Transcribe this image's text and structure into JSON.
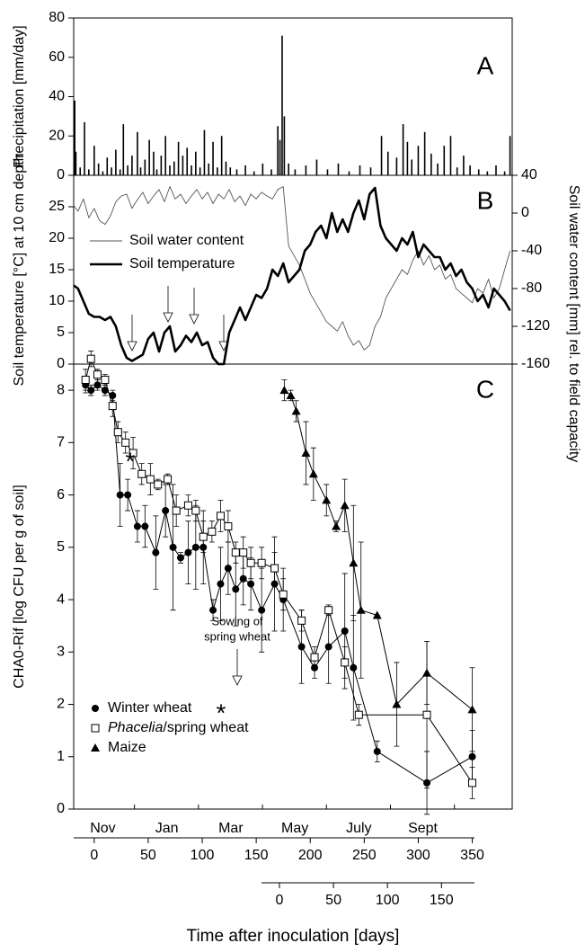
{
  "chart_data": [
    {
      "type": "bar",
      "label": "A",
      "ylabel": "Precipitation [mm/day]",
      "xlim": [
        -19,
        387
      ],
      "ylim": [
        0,
        80
      ],
      "yticks": [
        0,
        20,
        40,
        60,
        80
      ],
      "color": "#000000",
      "x": [
        -18,
        -17,
        -13,
        -9,
        -5,
        0,
        4,
        8,
        12,
        16,
        20,
        24,
        27,
        31,
        35,
        40,
        43,
        47,
        51,
        55,
        58,
        62,
        66,
        70,
        74,
        78,
        82,
        86,
        90,
        94,
        98,
        102,
        106,
        110,
        114,
        118,
        122,
        126,
        132,
        140,
        148,
        156,
        164,
        170,
        172,
        174,
        176,
        180,
        186,
        196,
        206,
        216,
        226,
        236,
        246,
        256,
        266,
        272,
        280,
        286,
        290,
        294,
        300,
        306,
        312,
        318,
        324,
        330,
        336,
        342,
        348,
        356,
        364,
        372,
        380,
        385
      ],
      "values": [
        38,
        12,
        4,
        27,
        3,
        15,
        6,
        2,
        9,
        4,
        13,
        3,
        26,
        5,
        10,
        22,
        4,
        8,
        18,
        12,
        3,
        10,
        20,
        5,
        7,
        17,
        10,
        14,
        5,
        12,
        4,
        23,
        6,
        17,
        4,
        20,
        7,
        4,
        3,
        5,
        2,
        6,
        3,
        25,
        18,
        71,
        30,
        6,
        3,
        5,
        8,
        3,
        6,
        2,
        5,
        4,
        20,
        12,
        9,
        26,
        17,
        8,
        15,
        22,
        11,
        6,
        15,
        20,
        4,
        10,
        5,
        3,
        2,
        5,
        2,
        20
      ]
    },
    {
      "type": "line",
      "label": "B",
      "ylabel": "Soil temperature [°C] at 10 cm depth",
      "y2label": "Soil water content [mm] rel. to field capacity",
      "xlim": [
        -19,
        387
      ],
      "ylim": [
        0,
        30
      ],
      "yticks": [
        0,
        5,
        10,
        15,
        20,
        25
      ],
      "y2lim": [
        -160,
        40
      ],
      "y2ticks": [
        -160,
        -120,
        -80,
        -40,
        0,
        40
      ],
      "legend": "center left",
      "series": [
        {
          "name": "Soil water content",
          "color": "#555555",
          "linewidth": 0.9,
          "axis": "y2",
          "x": [
            -19,
            -15,
            -10,
            -5,
            0,
            5,
            10,
            15,
            20,
            25,
            30,
            35,
            40,
            45,
            50,
            55,
            60,
            65,
            70,
            75,
            80,
            85,
            90,
            95,
            100,
            105,
            110,
            115,
            120,
            125,
            130,
            135,
            140,
            145,
            150,
            155,
            160,
            165,
            170,
            175,
            180,
            185,
            190,
            195,
            200,
            205,
            210,
            215,
            220,
            225,
            230,
            235,
            240,
            245,
            250,
            255,
            260,
            265,
            270,
            275,
            280,
            285,
            290,
            295,
            300,
            305,
            310,
            315,
            320,
            325,
            330,
            335,
            340,
            345,
            350,
            355,
            360,
            365,
            370,
            375,
            380,
            385
          ],
          "values": [
            8,
            2,
            15,
            -5,
            5,
            -8,
            -12,
            -3,
            12,
            18,
            20,
            5,
            14,
            22,
            10,
            18,
            25,
            12,
            28,
            15,
            20,
            10,
            18,
            25,
            15,
            22,
            10,
            20,
            15,
            25,
            12,
            18,
            8,
            20,
            15,
            22,
            18,
            15,
            25,
            28,
            -35,
            -45,
            -55,
            -70,
            -85,
            -95,
            -105,
            -115,
            -120,
            -125,
            -115,
            -130,
            -140,
            -135,
            -145,
            -140,
            -120,
            -110,
            -90,
            -80,
            -70,
            -60,
            -65,
            -50,
            -40,
            -55,
            -45,
            -60,
            -55,
            -70,
            -65,
            -80,
            -85,
            -90,
            -95,
            -80,
            -85,
            -70,
            -90,
            -80,
            -60,
            -40
          ]
        },
        {
          "name": "Soil temperature",
          "color": "#000000",
          "linewidth": 2.6,
          "x": [
            -19,
            -15,
            -10,
            -5,
            0,
            5,
            10,
            15,
            20,
            25,
            30,
            35,
            40,
            45,
            50,
            55,
            60,
            65,
            70,
            75,
            80,
            85,
            90,
            95,
            100,
            105,
            110,
            115,
            120,
            125,
            130,
            135,
            140,
            145,
            150,
            155,
            160,
            165,
            170,
            175,
            180,
            185,
            190,
            195,
            200,
            205,
            210,
            215,
            220,
            225,
            230,
            235,
            240,
            245,
            250,
            255,
            260,
            265,
            270,
            275,
            280,
            285,
            290,
            295,
            300,
            305,
            310,
            315,
            320,
            325,
            330,
            335,
            340,
            345,
            350,
            355,
            360,
            365,
            370,
            375,
            380,
            385
          ],
          "values": [
            12.5,
            12,
            10,
            8,
            7.5,
            7.5,
            7,
            7.5,
            6,
            3,
            1,
            0.5,
            1,
            1.5,
            4,
            5,
            2,
            5,
            6,
            2,
            3,
            4.5,
            3.5,
            5,
            3,
            3.5,
            1,
            0,
            0,
            5,
            7,
            9,
            7,
            9,
            11,
            10.5,
            12,
            15,
            14,
            16,
            13,
            14,
            15,
            18,
            19,
            21,
            22,
            20,
            24,
            21,
            23,
            21,
            24,
            26,
            23,
            27,
            28,
            22,
            20,
            19,
            18,
            20,
            19,
            21,
            17,
            19,
            18,
            17,
            17,
            15,
            16,
            14,
            15,
            13,
            12,
            10,
            11,
            9,
            12,
            11,
            10,
            8.5
          ]
        }
      ]
    },
    {
      "type": "line",
      "label": "C",
      "ylabel": "CHA0-Rif [log CFU per g of soil]",
      "xlabel": "Time after inoculation [days]",
      "categories": [
        "Nov",
        "Jan",
        "Mar",
        "May",
        "July",
        "Sept"
      ],
      "xlim": [
        -19,
        387
      ],
      "xticks": [
        0,
        50,
        100,
        150,
        200,
        250,
        300,
        350
      ],
      "x2lim": [
        -190.5,
        215.5
      ],
      "x2ticks": [
        0,
        50,
        100,
        150
      ],
      "ylim": [
        0,
        8.5
      ],
      "yticks": [
        0,
        1,
        2,
        3,
        4,
        5,
        6,
        7,
        8
      ],
      "legend": "lower left",
      "asterisks": [
        "*",
        "*"
      ],
      "annotation": [
        "Sowing of",
        "spring wheat"
      ],
      "series": [
        {
          "name": "Winter wheat",
          "color": "#000000",
          "marker": "circle",
          "x": [
            -8,
            -3,
            3,
            10,
            17,
            24,
            31,
            40,
            47,
            57,
            66,
            73,
            80,
            87,
            94,
            101,
            110,
            117,
            124,
            131,
            138,
            145,
            155,
            167,
            175,
            192,
            204,
            217,
            232,
            240,
            262,
            308,
            350
          ],
          "values": [
            8.1,
            8.0,
            8.1,
            8.0,
            7.9,
            6.0,
            6.0,
            5.4,
            5.4,
            4.9,
            5.7,
            5.0,
            4.8,
            4.9,
            5.0,
            5.0,
            3.8,
            4.3,
            4.6,
            4.2,
            4.4,
            4.3,
            3.8,
            4.3,
            4.0,
            3.1,
            2.7,
            3.1,
            3.4,
            2.7,
            1.1,
            0.5,
            1.0
          ],
          "errors": [
            0.15,
            0.1,
            0.1,
            0.1,
            0.1,
            0.6,
            0.3,
            0.3,
            0.4,
            0.7,
            0.5,
            1.2,
            0.1,
            0.6,
            0.8,
            0.7,
            0.2,
            0.7,
            0.5,
            0.7,
            0.5,
            0.5,
            0.8,
            0.9,
            0.6,
            0.7,
            0.2,
            0.7,
            1.1,
            1.0,
            0.2,
            0.6,
            0.5
          ]
        },
        {
          "name": "Phacelia/spring wheat",
          "color": "#000000",
          "marker": "square",
          "x": [
            -8,
            -3,
            3,
            10,
            17,
            22,
            29,
            36,
            44,
            52,
            59,
            68,
            76,
            87,
            94,
            101,
            109,
            117,
            124,
            131,
            138,
            145,
            155,
            167,
            175,
            192,
            204,
            217,
            232,
            245,
            308,
            350
          ],
          "values": [
            8.2,
            8.6,
            8.3,
            8.2,
            7.7,
            7.2,
            7.0,
            6.8,
            6.4,
            6.3,
            6.2,
            6.3,
            5.7,
            5.8,
            5.7,
            5.2,
            5.3,
            5.6,
            5.4,
            4.9,
            4.9,
            4.7,
            4.7,
            4.6,
            4.1,
            3.6,
            2.9,
            3.8,
            2.8,
            1.8,
            1.8,
            0.5
          ],
          "errors": [
            0.2,
            0.15,
            0.1,
            0.1,
            0.2,
            0.2,
            0.2,
            0.3,
            0.2,
            0.3,
            0.1,
            0.1,
            0.3,
            0.2,
            0.2,
            0.3,
            0.2,
            0.3,
            0.3,
            0.2,
            0.3,
            0.3,
            0.3,
            0.3,
            0.3,
            0.2,
            0.2,
            0.1,
            0.3,
            0.2,
            1.4,
            0.3
          ]
        },
        {
          "name": "Maize",
          "color": "#000000",
          "marker": "triangle",
          "x": [
            176,
            182,
            187,
            196,
            203,
            215,
            224,
            232,
            240,
            247,
            262,
            280,
            308,
            350
          ],
          "values": [
            8.0,
            7.9,
            7.6,
            6.8,
            6.4,
            5.9,
            5.4,
            5.8,
            4.7,
            3.8,
            3.7,
            2.0,
            2.6,
            1.9
          ],
          "errors": [
            0.2,
            0.1,
            0.2,
            0.6,
            0.5,
            0.3,
            0.1,
            0.5,
            1.1,
            1.3,
            0,
            0.8,
            0.6,
            0.8
          ]
        }
      ]
    }
  ]
}
